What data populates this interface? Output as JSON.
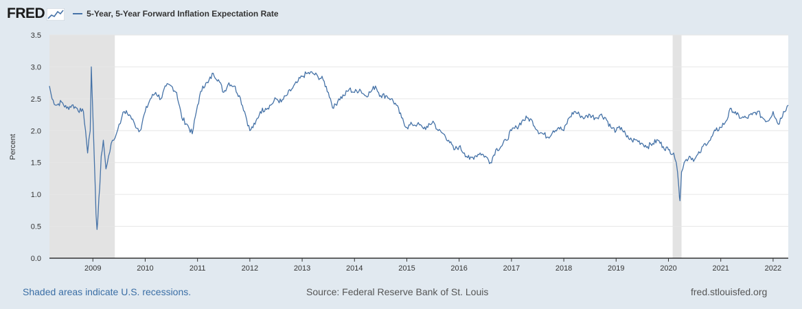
{
  "header": {
    "logo": "FRED"
  },
  "legend": {
    "label": "5-Year, 5-Year Forward Inflation Expectation Rate",
    "color": "#4572a7"
  },
  "footer": {
    "recession_note": "Shaded areas indicate U.S. recessions.",
    "source": "Source: Federal Reserve Bank of St. Louis",
    "site": "fred.stlouisfed.org"
  },
  "colors": {
    "background": "#e1e9f0",
    "plot_bg": "#ffffff",
    "recession": "#e3e3e3",
    "line": "#4572a7"
  },
  "chart_data": {
    "type": "line",
    "ylabel": "Percent",
    "xlabel": "",
    "title": "",
    "ylim": [
      0.0,
      3.5
    ],
    "xlim": [
      2008.17,
      2022.29
    ],
    "grid": true,
    "y_ticks": [
      "0.0",
      "0.5",
      "1.0",
      "1.5",
      "2.0",
      "2.5",
      "3.0",
      "3.5"
    ],
    "x_ticks": [
      "2009",
      "2010",
      "2011",
      "2012",
      "2013",
      "2014",
      "2015",
      "2016",
      "2017",
      "2018",
      "2019",
      "2020",
      "2021",
      "2022"
    ],
    "recessions": [
      [
        2008.17,
        2009.42
      ],
      [
        2020.08,
        2020.25
      ]
    ],
    "series": [
      {
        "name": "5-Year, 5-Year Forward Inflation Expectation Rate",
        "x": [
          2008.17,
          2008.22,
          2008.3,
          2008.4,
          2008.5,
          2008.6,
          2008.7,
          2008.78,
          2008.82,
          2008.86,
          2008.9,
          2008.95,
          2008.97,
          2008.99,
          2009.03,
          2009.06,
          2009.08,
          2009.1,
          2009.13,
          2009.16,
          2009.2,
          2009.25,
          2009.3,
          2009.35,
          2009.4,
          2009.45,
          2009.5,
          2009.55,
          2009.6,
          2009.7,
          2009.8,
          2009.9,
          2010.0,
          2010.1,
          2010.2,
          2010.3,
          2010.4,
          2010.5,
          2010.6,
          2010.7,
          2010.8,
          2010.9,
          2011.0,
          2011.1,
          2011.2,
          2011.3,
          2011.4,
          2011.5,
          2011.6,
          2011.7,
          2011.8,
          2011.9,
          2012.0,
          2012.1,
          2012.2,
          2012.3,
          2012.4,
          2012.5,
          2012.6,
          2012.7,
          2012.8,
          2012.9,
          2013.0,
          2013.1,
          2013.2,
          2013.3,
          2013.4,
          2013.5,
          2013.6,
          2013.7,
          2013.8,
          2013.9,
          2014.0,
          2014.1,
          2014.2,
          2014.3,
          2014.4,
          2014.5,
          2014.6,
          2014.7,
          2014.8,
          2014.9,
          2015.0,
          2015.1,
          2015.2,
          2015.3,
          2015.4,
          2015.5,
          2015.6,
          2015.7,
          2015.8,
          2015.9,
          2016.0,
          2016.1,
          2016.2,
          2016.3,
          2016.4,
          2016.5,
          2016.6,
          2016.7,
          2016.8,
          2016.9,
          2017.0,
          2017.1,
          2017.2,
          2017.3,
          2017.4,
          2017.5,
          2017.6,
          2017.7,
          2017.8,
          2017.9,
          2018.0,
          2018.1,
          2018.2,
          2018.3,
          2018.4,
          2018.5,
          2018.6,
          2018.7,
          2018.8,
          2018.9,
          2019.0,
          2019.1,
          2019.2,
          2019.3,
          2019.4,
          2019.5,
          2019.6,
          2019.7,
          2019.8,
          2019.9,
          2020.0,
          2020.1,
          2020.15,
          2020.2,
          2020.22,
          2020.25,
          2020.3,
          2020.4,
          2020.5,
          2020.6,
          2020.7,
          2020.8,
          2020.9,
          2021.0,
          2021.1,
          2021.2,
          2021.3,
          2021.4,
          2021.5,
          2021.6,
          2021.7,
          2021.8,
          2021.9,
          2022.0,
          2022.1,
          2022.2,
          2022.29
        ],
        "y": [
          2.7,
          2.5,
          2.4,
          2.45,
          2.35,
          2.4,
          2.35,
          2.3,
          2.3,
          2.0,
          1.65,
          2.0,
          3.0,
          2.5,
          1.5,
          0.7,
          0.45,
          0.7,
          1.1,
          1.6,
          1.85,
          1.4,
          1.6,
          1.8,
          1.85,
          1.95,
          2.1,
          2.2,
          2.3,
          2.25,
          2.1,
          2.0,
          2.3,
          2.5,
          2.6,
          2.5,
          2.7,
          2.7,
          2.6,
          2.2,
          2.1,
          1.95,
          2.4,
          2.7,
          2.75,
          2.9,
          2.8,
          2.6,
          2.75,
          2.7,
          2.55,
          2.3,
          2.0,
          2.1,
          2.3,
          2.35,
          2.4,
          2.5,
          2.45,
          2.55,
          2.65,
          2.75,
          2.85,
          2.9,
          2.9,
          2.85,
          2.8,
          2.6,
          2.35,
          2.5,
          2.55,
          2.65,
          2.6,
          2.65,
          2.55,
          2.6,
          2.7,
          2.55,
          2.55,
          2.5,
          2.4,
          2.2,
          2.05,
          2.1,
          2.1,
          2.05,
          2.05,
          2.15,
          2.0,
          1.95,
          1.85,
          1.7,
          1.75,
          1.65,
          1.55,
          1.6,
          1.65,
          1.6,
          1.5,
          1.7,
          1.75,
          1.85,
          2.0,
          2.05,
          2.15,
          2.2,
          2.15,
          2.0,
          1.95,
          1.9,
          2.0,
          2.05,
          2.0,
          2.2,
          2.3,
          2.25,
          2.2,
          2.25,
          2.2,
          2.25,
          2.2,
          2.05,
          2.0,
          2.05,
          1.9,
          1.85,
          1.85,
          1.8,
          1.75,
          1.8,
          1.85,
          1.75,
          1.7,
          1.65,
          1.5,
          1.1,
          0.9,
          1.35,
          1.5,
          1.6,
          1.55,
          1.65,
          1.8,
          1.85,
          2.0,
          2.05,
          2.15,
          2.35,
          2.25,
          2.2,
          2.2,
          2.25,
          2.3,
          2.2,
          2.15,
          2.3,
          2.1,
          2.3,
          2.4
        ]
      }
    ]
  }
}
